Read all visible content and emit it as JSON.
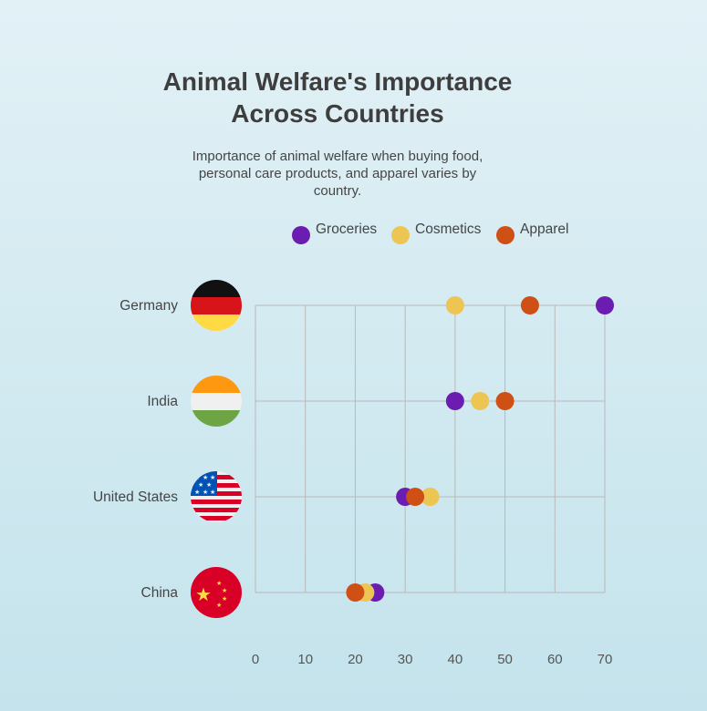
{
  "title_line1": "Animal Welfare's Importance",
  "title_line2": "Across Countries",
  "subtitle": "Importance of animal welfare when buying food, personal care products, and apparel varies by country.",
  "colors": {
    "groceries": "#6a1db0",
    "cosmetics": "#ecc553",
    "apparel": "#cf5014",
    "grid": "#b9b9b9"
  },
  "legend": [
    {
      "label": "Groceries",
      "color": "#6a1db0"
    },
    {
      "label": "Cosmetics",
      "color": "#ecc553"
    },
    {
      "label": "Apparel",
      "color": "#cf5014"
    }
  ],
  "chart_data": {
    "type": "scatter",
    "title": "Animal Welfare's Importance Across Countries",
    "subtitle": "Importance of animal welfare when buying food, personal care products, and apparel varies by country.",
    "categories": [
      "Germany",
      "India",
      "United States",
      "China"
    ],
    "flags": [
      "germany-flag",
      "india-flag",
      "united-states-flag",
      "china-flag"
    ],
    "series": [
      {
        "name": "Groceries",
        "color": "#6a1db0",
        "values": [
          70,
          40,
          30,
          24
        ]
      },
      {
        "name": "Cosmetics",
        "color": "#ecc553",
        "values": [
          40,
          45,
          35,
          22
        ]
      },
      {
        "name": "Apparel",
        "color": "#cf5014",
        "values": [
          55,
          50,
          32,
          20
        ]
      }
    ],
    "xticks": [
      0,
      10,
      20,
      30,
      40,
      50,
      60,
      70
    ],
    "xlim": [
      0,
      70
    ],
    "grid": true,
    "legend_position": "top"
  }
}
